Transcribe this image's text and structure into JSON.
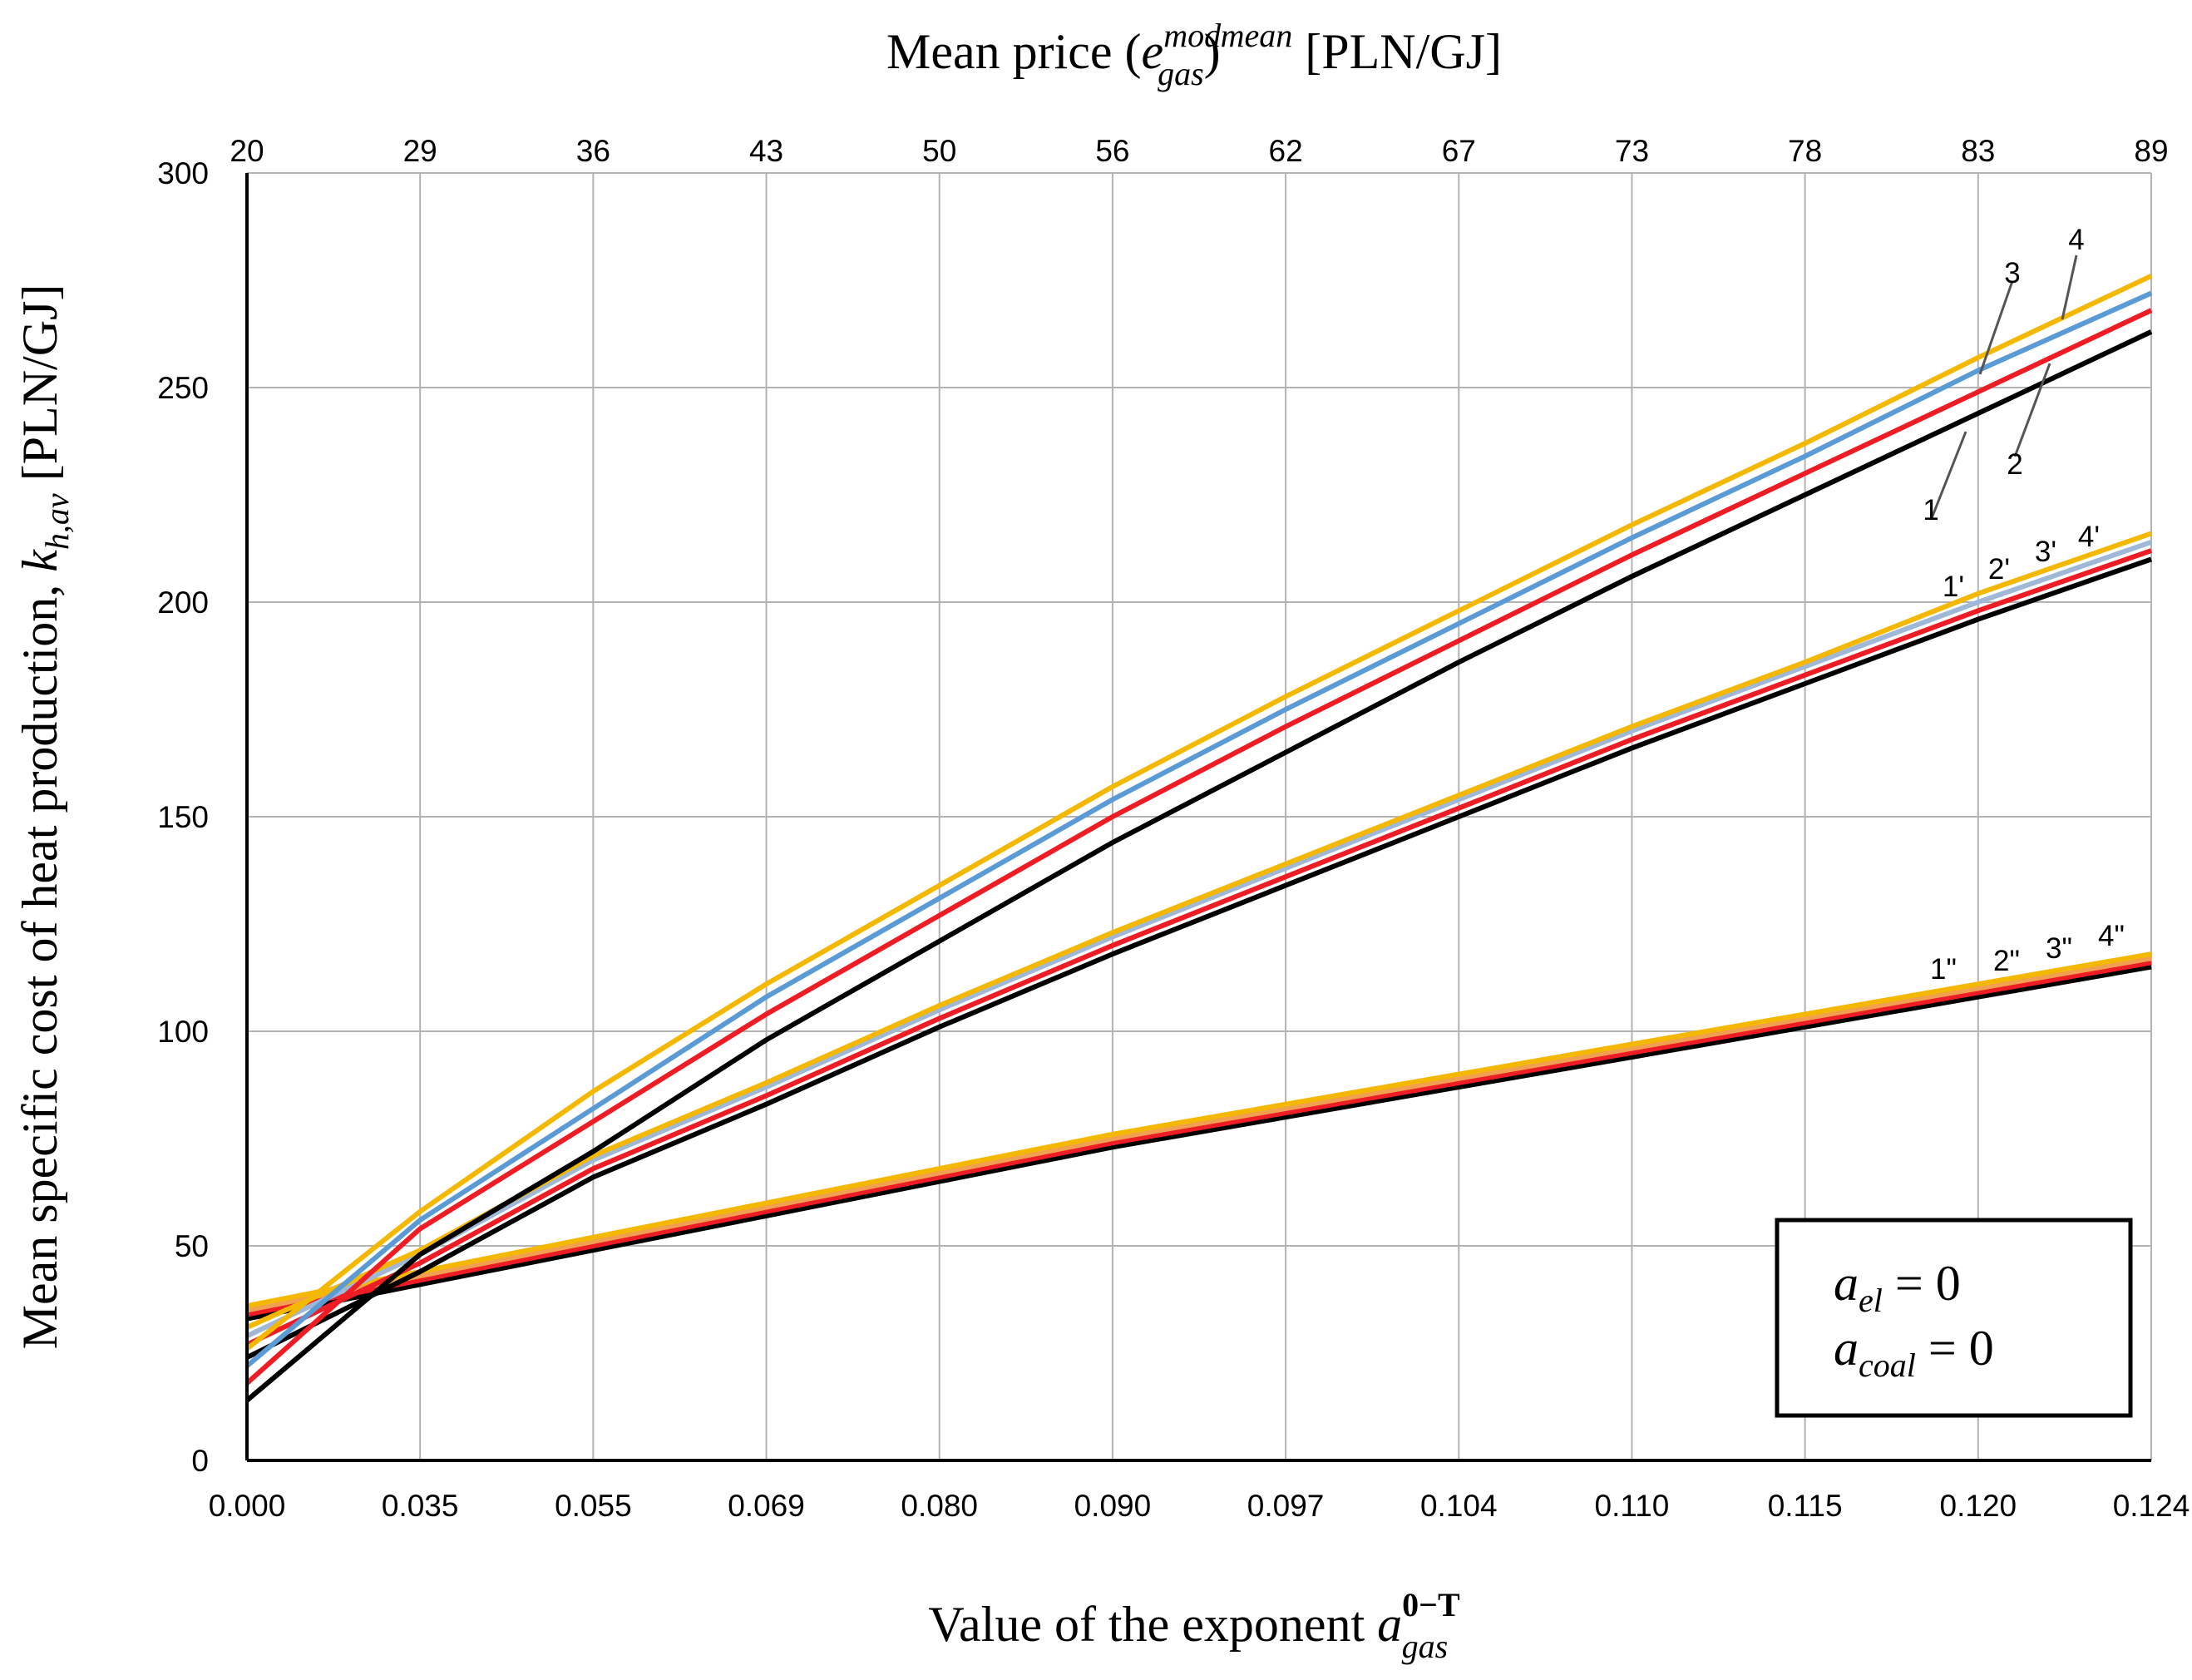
{
  "chart_data": {
    "type": "line",
    "title": "",
    "top_axis": {
      "title_prefix": "Mean price (",
      "title_var": "e",
      "title_sup": "mod",
      "title_sub": "gas",
      "title_close": ")",
      "title_sup2": "mean",
      "title_unit": " [PLN/GJ]",
      "ticks": [
        "20",
        "29",
        "36",
        "43",
        "50",
        "56",
        "62",
        "67",
        "73",
        "78",
        "83",
        "89"
      ]
    },
    "x_axis": {
      "title_text": "Value of the exponent ",
      "title_var": "a",
      "title_sup": "0−T",
      "title_sub": "gas",
      "ticks": [
        "0.000",
        "0.035",
        "0.055",
        "0.069",
        "0.080",
        "0.090",
        "0.097",
        "0.104",
        "0.110",
        "0.115",
        "0.120",
        "0.124"
      ]
    },
    "y_axis": {
      "title_text": "Mean specific cost of heat production, ",
      "title_var": "k",
      "title_sub": "h,av",
      "title_unit": " [PLN/GJ]",
      "ylim": [
        0,
        300
      ],
      "ticks": [
        "0",
        "50",
        "100",
        "150",
        "200",
        "250",
        "300"
      ]
    },
    "grid": true,
    "x_index": [
      0,
      1,
      2,
      3,
      4,
      5,
      6,
      7,
      8,
      9,
      10,
      11
    ],
    "series": [
      {
        "name": "1",
        "color": "#000000",
        "values": [
          14,
          48,
          72,
          98,
          121,
          144,
          165,
          186,
          206,
          225,
          244,
          263
        ]
      },
      {
        "name": "2",
        "color": "#ee1c24",
        "values": [
          18,
          54,
          79,
          104,
          127,
          150,
          171,
          191,
          211,
          230,
          249,
          268
        ]
      },
      {
        "name": "3",
        "color": "#5b9bd5",
        "values": [
          22,
          56,
          82,
          108,
          131,
          154,
          175,
          195,
          215,
          234,
          254,
          272
        ]
      },
      {
        "name": "4",
        "color": "#f5b800",
        "values": [
          26,
          58,
          86,
          111,
          134,
          157,
          178,
          198,
          218,
          237,
          257,
          276
        ]
      },
      {
        "name": "1'",
        "color": "#000000",
        "values": [
          24,
          44,
          66,
          83,
          101,
          118,
          134,
          150,
          166,
          181,
          196,
          210
        ]
      },
      {
        "name": "2'",
        "color": "#ee1c24",
        "values": [
          27,
          46,
          68,
          85,
          103,
          120,
          136,
          152,
          168,
          183,
          198,
          212
        ]
      },
      {
        "name": "3'",
        "color": "#9fb8d8",
        "values": [
          29,
          48,
          70,
          87,
          105,
          122,
          138,
          154,
          170,
          185,
          200,
          214
        ]
      },
      {
        "name": "4'",
        "color": "#f5b800",
        "values": [
          31,
          49,
          71,
          88,
          106,
          123,
          139,
          155,
          171,
          186,
          202,
          216
        ]
      },
      {
        "name": "1\"",
        "color": "#000000",
        "values": [
          33,
          41,
          49,
          57,
          65,
          73,
          80,
          87,
          94,
          101,
          108,
          115
        ]
      },
      {
        "name": "2\"",
        "color": "#ee1c24",
        "values": [
          34,
          42,
          50,
          58,
          66,
          74,
          81,
          88,
          95,
          102,
          109,
          116
        ]
      },
      {
        "name": "3\"",
        "color": "#f0a050",
        "values": [
          35,
          43,
          51,
          59,
          67,
          75,
          82,
          89,
          96,
          103,
          110,
          117
        ]
      },
      {
        "name": "4\"",
        "color": "#f5b800",
        "values": [
          36,
          44,
          52,
          60,
          68,
          76,
          83,
          90,
          97,
          104,
          111,
          118
        ]
      }
    ],
    "legend": {
      "placement": "bottom-right",
      "line1": {
        "var": "a",
        "sub": "el",
        "rhs": " = 0"
      },
      "line2": {
        "var": "a",
        "sub": "coal",
        "rhs": " = 0"
      }
    }
  }
}
